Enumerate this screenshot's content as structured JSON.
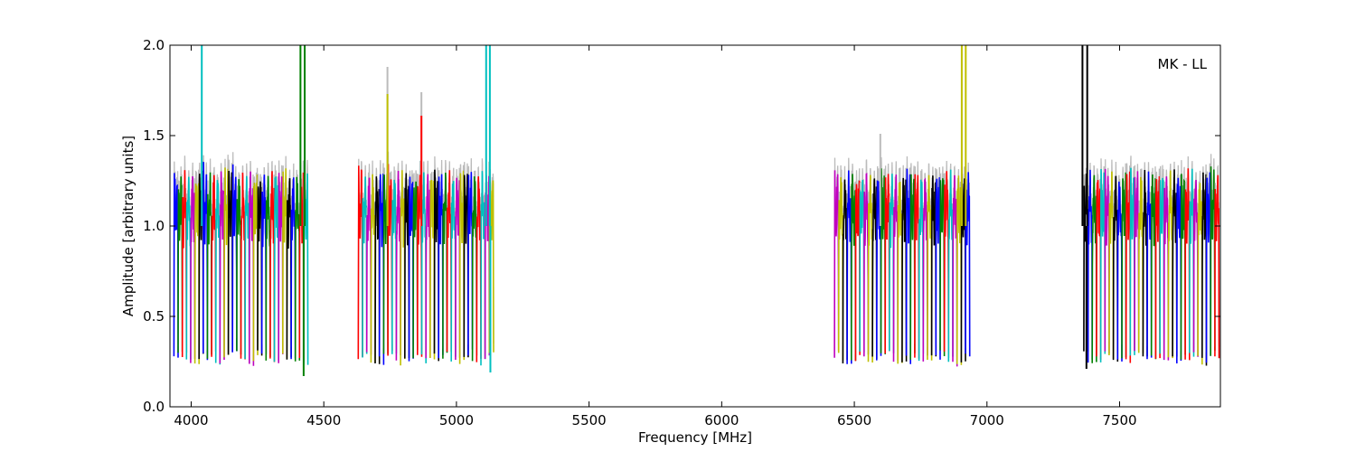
{
  "chart_data": {
    "type": "line",
    "annotation": "MK - LL",
    "xlabel": "Frequency [MHz]",
    "ylabel": "Amplitude [arbitrary units]",
    "xlim": [
      3920,
      7880
    ],
    "ylim": [
      0.0,
      2.0
    ],
    "xticks": [
      4000,
      4500,
      5000,
      5500,
      6000,
      6500,
      7000,
      7500
    ],
    "xtick_labels": [
      "4000",
      "4500",
      "5000",
      "5500",
      "6000",
      "6500",
      "7000",
      "7500"
    ],
    "yticks": [
      0.0,
      0.5,
      1.0,
      1.5,
      2.0
    ],
    "ytick_labels": [
      "0.0",
      "0.5",
      "1.0",
      "1.5",
      "2.0"
    ],
    "grid": false,
    "palette": [
      "#0000ff",
      "#008000",
      "#ff0000",
      "#00bfbf",
      "#bf00bf",
      "#bfbf00",
      "#000000"
    ],
    "reference_color": "#bbbbbb",
    "band_groups": [
      {
        "start": 3935,
        "end": 4440,
        "n_channels": 32,
        "first_color": 0
      },
      {
        "start": 4630,
        "end": 5140,
        "n_channels": 32,
        "first_color": 2
      },
      {
        "start": 6425,
        "end": 6935,
        "n_channels": 32,
        "first_color": 4
      },
      {
        "start": 7365,
        "end": 7875,
        "n_channels": 32,
        "first_color": 6
      }
    ],
    "spikes": [
      {
        "x": 4040,
        "y": 2.0,
        "color": "#00bfbf"
      },
      {
        "x": 4412,
        "y": 2.0,
        "color": "#008000"
      },
      {
        "x": 4428,
        "y": 2.0,
        "color": "#008000"
      },
      {
        "x": 4424,
        "y": 0.17,
        "color": "#008000"
      },
      {
        "x": 4740,
        "y": 1.88,
        "color": "#bbbbbb"
      },
      {
        "x": 4740,
        "y": 1.73,
        "color": "#bfbf00"
      },
      {
        "x": 4868,
        "y": 1.74,
        "color": "#bbbbbb"
      },
      {
        "x": 4868,
        "y": 1.61,
        "color": "#ff0000"
      },
      {
        "x": 5112,
        "y": 2.0,
        "color": "#00bfbf"
      },
      {
        "x": 5126,
        "y": 2.0,
        "color": "#00bfbf"
      },
      {
        "x": 5128,
        "y": 0.19,
        "color": "#00bfbf"
      },
      {
        "x": 6598,
        "y": 1.51,
        "color": "#bbbbbb"
      },
      {
        "x": 6905,
        "y": 2.0,
        "color": "#bfbf00"
      },
      {
        "x": 6920,
        "y": 2.0,
        "color": "#bfbf00"
      },
      {
        "x": 7360,
        "y": 2.0,
        "color": "#000000"
      },
      {
        "x": 7378,
        "y": 2.0,
        "color": "#000000"
      },
      {
        "x": 7375,
        "y": 0.21,
        "color": "#000000"
      }
    ]
  }
}
